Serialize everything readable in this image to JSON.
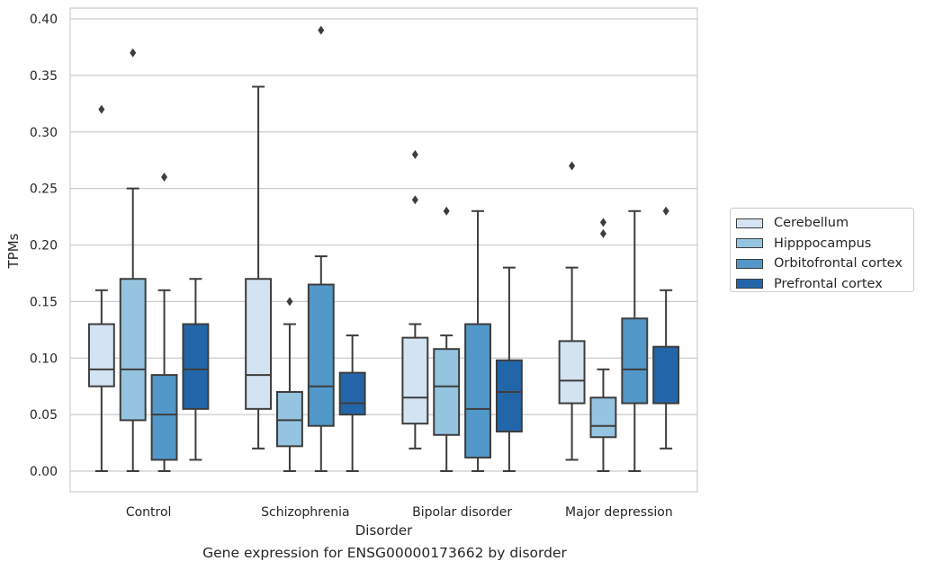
{
  "chart_data": {
    "type": "box",
    "xlabel": "Disorder",
    "ylabel": "TPMs",
    "ylim": [
      -0.018,
      0.41
    ],
    "yticks": [
      0.0,
      0.05,
      0.1,
      0.15,
      0.2,
      0.25,
      0.3,
      0.35,
      0.4
    ],
    "ytick_labels": [
      "0.00",
      "0.05",
      "0.10",
      "0.15",
      "0.20",
      "0.25",
      "0.30",
      "0.35",
      "0.40"
    ],
    "grid": "horizontal",
    "legend_placement": "outside-right",
    "categories": [
      "Control",
      "Schizophrenia",
      "Bipolar disorder",
      "Major depression"
    ],
    "series": [
      {
        "name": "Cerebellum",
        "color": "#d3e3f2",
        "boxes": [
          {
            "whislo": 0.0,
            "q1": 0.075,
            "med": 0.09,
            "q3": 0.13,
            "whishi": 0.16,
            "fliers": [
              0.32
            ]
          },
          {
            "whislo": 0.02,
            "q1": 0.055,
            "med": 0.085,
            "q3": 0.17,
            "whishi": 0.34,
            "fliers": []
          },
          {
            "whislo": 0.02,
            "q1": 0.042,
            "med": 0.065,
            "q3": 0.118,
            "whishi": 0.13,
            "fliers": [
              0.24,
              0.28
            ]
          },
          {
            "whislo": 0.01,
            "q1": 0.06,
            "med": 0.08,
            "q3": 0.115,
            "whishi": 0.18,
            "fliers": [
              0.27
            ]
          }
        ]
      },
      {
        "name": "Hipppocampus",
        "color": "#94c4df",
        "boxes": [
          {
            "whislo": 0.0,
            "q1": 0.045,
            "med": 0.09,
            "q3": 0.17,
            "whishi": 0.25,
            "fliers": [
              0.37
            ]
          },
          {
            "whislo": 0.0,
            "q1": 0.022,
            "med": 0.045,
            "q3": 0.07,
            "whishi": 0.13,
            "fliers": [
              0.15
            ]
          },
          {
            "whislo": 0.0,
            "q1": 0.032,
            "med": 0.075,
            "q3": 0.108,
            "whishi": 0.12,
            "fliers": [
              0.23
            ]
          },
          {
            "whislo": 0.0,
            "q1": 0.03,
            "med": 0.04,
            "q3": 0.065,
            "whishi": 0.09,
            "fliers": [
              0.21,
              0.22
            ]
          }
        ]
      },
      {
        "name": "Orbitofrontal cortex",
        "color": "#5198c8",
        "boxes": [
          {
            "whislo": 0.0,
            "q1": 0.01,
            "med": 0.05,
            "q3": 0.085,
            "whishi": 0.16,
            "fliers": [
              0.26
            ]
          },
          {
            "whislo": 0.0,
            "q1": 0.04,
            "med": 0.075,
            "q3": 0.165,
            "whishi": 0.19,
            "fliers": [
              0.39
            ]
          },
          {
            "whislo": 0.0,
            "q1": 0.012,
            "med": 0.055,
            "q3": 0.13,
            "whishi": 0.23,
            "fliers": []
          },
          {
            "whislo": 0.0,
            "q1": 0.06,
            "med": 0.09,
            "q3": 0.135,
            "whishi": 0.23,
            "fliers": []
          }
        ]
      },
      {
        "name": "Prefrontal cortex",
        "color": "#2266a9",
        "boxes": [
          {
            "whislo": 0.01,
            "q1": 0.055,
            "med": 0.09,
            "q3": 0.13,
            "whishi": 0.17,
            "fliers": []
          },
          {
            "whislo": 0.0,
            "q1": 0.05,
            "med": 0.06,
            "q3": 0.087,
            "whishi": 0.12,
            "fliers": []
          },
          {
            "whislo": 0.0,
            "q1": 0.035,
            "med": 0.07,
            "q3": 0.098,
            "whishi": 0.18,
            "fliers": []
          },
          {
            "whislo": 0.02,
            "q1": 0.06,
            "med": 0.06,
            "q3": 0.11,
            "whishi": 0.16,
            "fliers": [
              0.23
            ]
          }
        ]
      }
    ],
    "caption": "Gene expression for ENSG00000173662 by disorder"
  }
}
